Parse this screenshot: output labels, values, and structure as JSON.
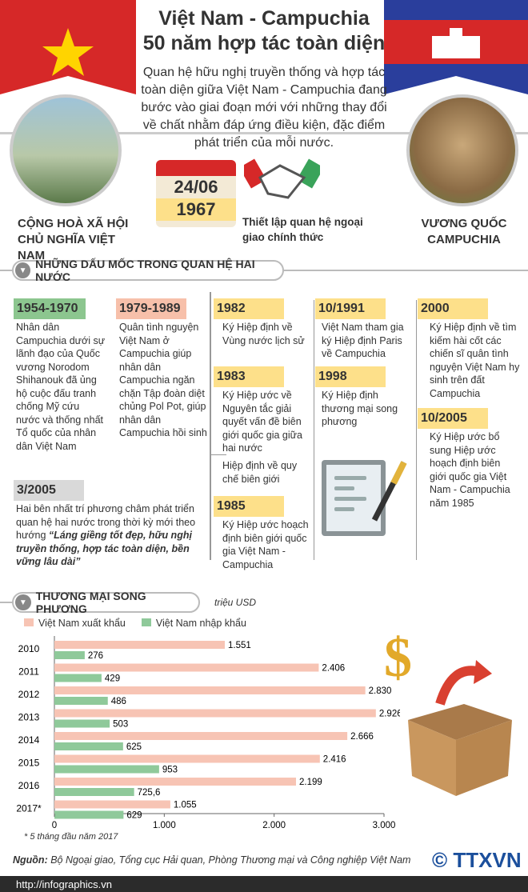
{
  "header": {
    "title_line1": "Việt Nam - Campuchia",
    "title_line2": "50 năm hợp tác toàn diện",
    "intro": "Quan hệ hữu nghị truyền thống và hợp tác toàn diện giữa Việt Nam - Campuchia đang bước vào giai đoạn mới với những thay đổi về chất nhằm đáp ứng điều kiện, đặc điểm phát triển của mỗi nước.",
    "left_country": "CỘNG HOÀ XÃ HỘI CHỦ NGHĨA VIỆT NAM",
    "right_country": "VƯƠNG QUỐC CAMPUCHIA",
    "date_day": "24/06",
    "date_year": "1967",
    "event": "Thiết lập quan hệ ngoại giao chính thức"
  },
  "milestones": {
    "heading": "NHỮNG DẤU MỐC TRONG QUAN HỆ HAI NƯỚC",
    "items": [
      {
        "year": "1954-1970",
        "text": "Nhân dân Campuchia dưới sự lãnh đạo của Quốc vương Norodom Shihanouk đã ủng hộ cuộc đấu tranh chống Mỹ cứu nước và thống nhất Tổ quốc của nhân dân Việt Nam"
      },
      {
        "year": "1979-1989",
        "text": "Quân tình nguyện Việt Nam ở Campuchia giúp nhân dân Campuchia ngăn chặn Tập đoàn diệt chủng Pol Pot, giúp nhân dân Campuchia hồi sinh"
      },
      {
        "year": "3/2005",
        "text": "Hai bên nhất trí phương châm phát triển quan hệ hai nước trong thời kỳ mới theo hướng ",
        "quote": "“Láng giềng tốt đẹp, hữu nghị truyền thống, hợp tác toàn diện, bền vững lâu dài”"
      },
      {
        "year": "1982",
        "text": "Ký Hiệp định về Vùng nước lịch sử"
      },
      {
        "year": "1983",
        "text": "Ký Hiệp ước về Nguyên tắc giải quyết vấn đề biên giới quốc gia giữa hai nước",
        "extra": "Hiệp định về quy chế biên giới"
      },
      {
        "year": "1985",
        "text": "Ký Hiệp ước hoạch định biên giới quốc gia Việt Nam - Campuchia"
      },
      {
        "year": "10/1991",
        "text": "Việt Nam tham gia ký Hiệp định Paris về Campuchia"
      },
      {
        "year": "1998",
        "text": "Ký Hiệp định thương mại song phương"
      },
      {
        "year": "2000",
        "text": "Ký Hiệp định về tìm kiếm hài cốt các chiến sĩ quân tình nguyện Việt Nam hy sinh trên đất Campuchia"
      },
      {
        "year": "10/2005",
        "text": "Ký Hiệp ước bổ sung Hiệp ước hoạch định biên giới quốc gia Việt Nam - Campuchia năm 1985"
      }
    ]
  },
  "trade": {
    "heading": "THƯƠNG MẠI SONG PHƯƠNG",
    "unit": "triệu USD",
    "footnote": "* 5 tháng đầu năm 2017"
  },
  "chart_data": {
    "type": "bar",
    "orientation": "horizontal",
    "categories": [
      "2010",
      "2011",
      "2012",
      "2013",
      "2014",
      "2015",
      "2016",
      "2017*"
    ],
    "series": [
      {
        "name": "Việt Nam xuất khẩu",
        "color": "#f7c4b4",
        "values": [
          1551,
          2406,
          2830,
          2926,
          2666,
          2416,
          2199,
          1055
        ],
        "labels": [
          "1.551",
          "2.406",
          "2.830",
          "2.926",
          "2.666",
          "2.416",
          "2.199",
          "1.055"
        ]
      },
      {
        "name": "Việt Nam nhập khẩu",
        "color": "#8fc99a",
        "values": [
          276,
          429,
          486,
          503,
          625,
          953,
          725.6,
          629
        ],
        "labels": [
          "276",
          "429",
          "486",
          "503",
          "625",
          "953",
          "725,6",
          "629"
        ]
      }
    ],
    "xlim": [
      0,
      3000
    ],
    "xticks": [
      "0",
      "1.000",
      "2.000",
      "3.000"
    ],
    "legend": "top"
  },
  "footer": {
    "source_label": "Nguồn:",
    "source": " Bộ Ngoại giao, Tổng cục Hải quan, Phòng Thương mại và Công nghiệp Việt Nam",
    "url": "http://infographics.vn",
    "logo": "TTXVN"
  }
}
